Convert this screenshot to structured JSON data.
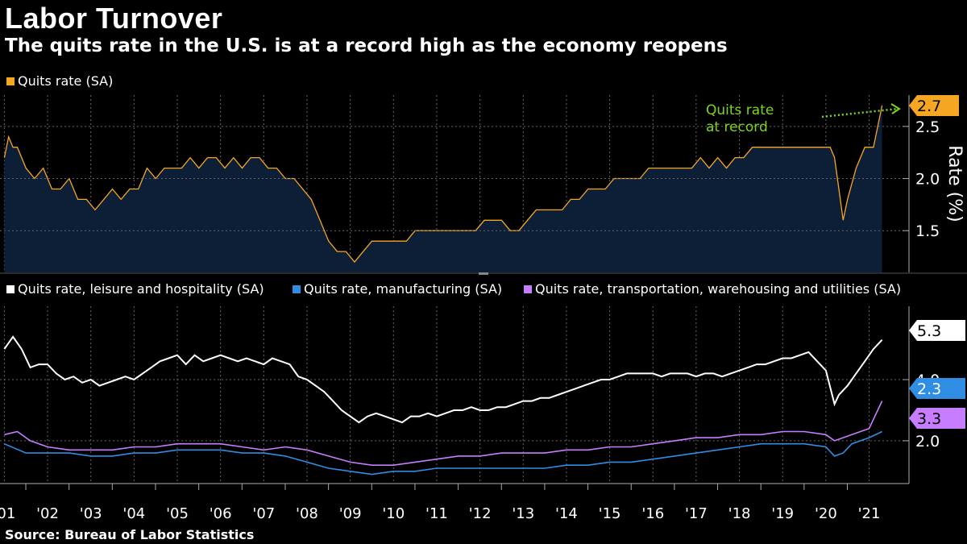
{
  "title": "Labor Turnover",
  "subtitle": "The quits rate in the U.S. is at a record high as the economy reopens",
  "source": "Source: Bureau of Labor Statistics",
  "colors": {
    "background": "#000000",
    "total": "#f5a623",
    "total_area": "#0c1f37",
    "leisure": "#ffffff",
    "manufacturing": "#2f8de4",
    "transportation": "#c77dff",
    "annotation": "#7ed321",
    "grid": "#666666"
  },
  "chart_data": [
    {
      "type": "area",
      "title": "Quits rate (SA)",
      "ylabel": "Rate (%)",
      "ylim": [
        1.1,
        2.8
      ],
      "yticks": [
        "1.5",
        "2.0",
        "2.5"
      ],
      "x_range": [
        2000.9,
        2021.4
      ],
      "annotation": "Quits rate at record",
      "series": [
        {
          "name": "Quits rate (SA)",
          "last_value_label": "2.7",
          "x": [
            2001.0,
            2001.1,
            2001.2,
            2001.3,
            2001.5,
            2001.7,
            2001.9,
            2002.1,
            2002.3,
            2002.5,
            2002.7,
            2002.9,
            2003.1,
            2003.3,
            2003.5,
            2003.7,
            2003.9,
            2004.1,
            2004.3,
            2004.5,
            2004.7,
            2004.9,
            2005.1,
            2005.3,
            2005.5,
            2005.7,
            2005.9,
            2006.1,
            2006.3,
            2006.5,
            2006.7,
            2006.9,
            2007.1,
            2007.3,
            2007.5,
            2007.7,
            2007.9,
            2008.1,
            2008.3,
            2008.5,
            2008.7,
            2008.9,
            2009.1,
            2009.3,
            2009.5,
            2009.7,
            2009.9,
            2010.1,
            2010.3,
            2010.5,
            2010.7,
            2010.9,
            2011.1,
            2011.3,
            2011.5,
            2011.7,
            2011.9,
            2012.1,
            2012.3,
            2012.5,
            2012.7,
            2012.9,
            2013.1,
            2013.3,
            2013.5,
            2013.7,
            2013.9,
            2014.1,
            2014.3,
            2014.5,
            2014.7,
            2014.9,
            2015.1,
            2015.3,
            2015.5,
            2015.7,
            2015.9,
            2016.1,
            2016.3,
            2016.5,
            2016.7,
            2016.9,
            2017.1,
            2017.3,
            2017.5,
            2017.7,
            2017.9,
            2018.1,
            2018.3,
            2018.5,
            2018.7,
            2018.9,
            2019.1,
            2019.3,
            2019.5,
            2019.7,
            2019.9,
            2020.1,
            2020.2,
            2020.3,
            2020.4,
            2020.5,
            2020.7,
            2020.9,
            2021.1,
            2021.3
          ],
          "values": [
            2.2,
            2.4,
            2.3,
            2.3,
            2.1,
            2.0,
            2.1,
            1.9,
            1.9,
            2.0,
            1.8,
            1.8,
            1.7,
            1.8,
            1.9,
            1.8,
            1.9,
            1.9,
            2.1,
            2.0,
            2.1,
            2.1,
            2.1,
            2.2,
            2.1,
            2.2,
            2.2,
            2.1,
            2.2,
            2.1,
            2.2,
            2.2,
            2.1,
            2.1,
            2.0,
            2.0,
            1.9,
            1.8,
            1.6,
            1.4,
            1.3,
            1.3,
            1.2,
            1.3,
            1.4,
            1.4,
            1.4,
            1.4,
            1.4,
            1.5,
            1.5,
            1.5,
            1.5,
            1.5,
            1.5,
            1.5,
            1.5,
            1.6,
            1.6,
            1.6,
            1.5,
            1.5,
            1.6,
            1.7,
            1.7,
            1.7,
            1.7,
            1.8,
            1.8,
            1.9,
            1.9,
            1.9,
            2.0,
            2.0,
            2.0,
            2.0,
            2.1,
            2.1,
            2.1,
            2.1,
            2.1,
            2.1,
            2.2,
            2.1,
            2.2,
            2.1,
            2.2,
            2.2,
            2.3,
            2.3,
            2.3,
            2.3,
            2.3,
            2.3,
            2.3,
            2.3,
            2.3,
            2.3,
            2.2,
            1.9,
            1.6,
            1.8,
            2.1,
            2.3,
            2.3,
            2.7
          ]
        }
      ]
    },
    {
      "type": "line",
      "ylim": [
        0.6,
        6.4
      ],
      "yticks": [
        "2.0",
        "4.0"
      ],
      "x_range": [
        2000.9,
        2021.4
      ],
      "xticks": [
        "'01",
        "'02",
        "'03",
        "'04",
        "'05",
        "'06",
        "'07",
        "'08",
        "'09",
        "'10",
        "'11",
        "'12",
        "'13",
        "'14",
        "'15",
        "'16",
        "'17",
        "'18",
        "'19",
        "'20",
        "'21"
      ],
      "series": [
        {
          "name": "Quits rate, leisure and hospitality (SA)",
          "last_value_label": "5.3",
          "x": [
            2001.0,
            2001.2,
            2001.4,
            2001.6,
            2001.8,
            2002.0,
            2002.2,
            2002.4,
            2002.6,
            2002.8,
            2003.0,
            2003.2,
            2003.4,
            2003.6,
            2003.8,
            2004.0,
            2004.2,
            2004.4,
            2004.6,
            2004.8,
            2005.0,
            2005.2,
            2005.4,
            2005.6,
            2005.8,
            2006.0,
            2006.2,
            2006.4,
            2006.6,
            2006.8,
            2007.0,
            2007.2,
            2007.4,
            2007.6,
            2007.8,
            2008.0,
            2008.2,
            2008.4,
            2008.6,
            2008.8,
            2009.0,
            2009.2,
            2009.4,
            2009.6,
            2009.8,
            2010.0,
            2010.2,
            2010.4,
            2010.6,
            2010.8,
            2011.0,
            2011.2,
            2011.4,
            2011.6,
            2011.8,
            2012.0,
            2012.2,
            2012.4,
            2012.6,
            2012.8,
            2013.0,
            2013.2,
            2013.4,
            2013.6,
            2013.8,
            2014.0,
            2014.2,
            2014.4,
            2014.6,
            2014.8,
            2015.0,
            2015.2,
            2015.4,
            2015.6,
            2015.8,
            2016.0,
            2016.2,
            2016.4,
            2016.6,
            2016.8,
            2017.0,
            2017.2,
            2017.4,
            2017.6,
            2017.8,
            2018.0,
            2018.2,
            2018.4,
            2018.6,
            2018.8,
            2019.0,
            2019.2,
            2019.4,
            2019.6,
            2019.8,
            2020.0,
            2020.2,
            2020.3,
            2020.5,
            2020.7,
            2020.9,
            2021.1,
            2021.3
          ],
          "values": [
            5.0,
            5.4,
            5.0,
            4.4,
            4.5,
            4.5,
            4.2,
            4.0,
            4.1,
            3.9,
            4.0,
            3.8,
            3.9,
            4.0,
            4.1,
            4.0,
            4.2,
            4.4,
            4.6,
            4.7,
            4.8,
            4.5,
            4.8,
            4.6,
            4.7,
            4.8,
            4.7,
            4.6,
            4.7,
            4.6,
            4.5,
            4.7,
            4.6,
            4.5,
            4.1,
            4.0,
            3.8,
            3.6,
            3.3,
            3.0,
            2.8,
            2.6,
            2.8,
            2.9,
            2.8,
            2.7,
            2.6,
            2.8,
            2.8,
            2.9,
            2.8,
            2.9,
            3.0,
            3.0,
            3.1,
            3.0,
            3.0,
            3.1,
            3.1,
            3.2,
            3.3,
            3.3,
            3.4,
            3.4,
            3.5,
            3.6,
            3.7,
            3.8,
            3.9,
            4.0,
            4.0,
            4.1,
            4.2,
            4.2,
            4.2,
            4.2,
            4.1,
            4.2,
            4.2,
            4.2,
            4.1,
            4.2,
            4.2,
            4.1,
            4.2,
            4.3,
            4.4,
            4.5,
            4.5,
            4.6,
            4.7,
            4.7,
            4.8,
            4.9,
            4.6,
            4.3,
            3.2,
            3.5,
            3.8,
            4.2,
            4.6,
            5.0,
            5.3
          ]
        },
        {
          "name": "Quits rate, manufacturing (SA)",
          "last_value_label": "2.3",
          "x": [
            2001.0,
            2001.5,
            2002.0,
            2002.5,
            2003.0,
            2003.5,
            2004.0,
            2004.5,
            2005.0,
            2005.5,
            2006.0,
            2006.5,
            2007.0,
            2007.5,
            2008.0,
            2008.5,
            2009.0,
            2009.5,
            2010.0,
            2010.5,
            2011.0,
            2011.5,
            2012.0,
            2012.5,
            2013.0,
            2013.5,
            2014.0,
            2014.5,
            2015.0,
            2015.5,
            2016.0,
            2016.5,
            2017.0,
            2017.5,
            2018.0,
            2018.5,
            2019.0,
            2019.5,
            2020.0,
            2020.2,
            2020.4,
            2020.6,
            2020.8,
            2021.0,
            2021.3
          ],
          "values": [
            1.9,
            1.6,
            1.6,
            1.6,
            1.5,
            1.5,
            1.6,
            1.6,
            1.7,
            1.7,
            1.7,
            1.6,
            1.6,
            1.5,
            1.3,
            1.1,
            1.0,
            0.9,
            1.0,
            1.0,
            1.1,
            1.1,
            1.1,
            1.1,
            1.1,
            1.1,
            1.2,
            1.2,
            1.3,
            1.3,
            1.4,
            1.5,
            1.6,
            1.7,
            1.8,
            1.9,
            1.9,
            1.9,
            1.8,
            1.5,
            1.6,
            1.9,
            2.0,
            2.1,
            2.3
          ]
        },
        {
          "name": "Quits rate, transportation, warehousing and utilities (SA)",
          "last_value_label": "3.3",
          "x": [
            2001.0,
            2001.3,
            2001.6,
            2002.0,
            2002.5,
            2003.0,
            2003.5,
            2004.0,
            2004.5,
            2005.0,
            2005.5,
            2006.0,
            2006.5,
            2007.0,
            2007.5,
            2008.0,
            2008.5,
            2009.0,
            2009.5,
            2010.0,
            2010.5,
            2011.0,
            2011.5,
            2012.0,
            2012.5,
            2013.0,
            2013.5,
            2014.0,
            2014.5,
            2015.0,
            2015.5,
            2016.0,
            2016.5,
            2017.0,
            2017.5,
            2018.0,
            2018.5,
            2019.0,
            2019.5,
            2020.0,
            2020.2,
            2020.4,
            2020.6,
            2020.8,
            2021.0,
            2021.3
          ],
          "values": [
            2.2,
            2.3,
            2.0,
            1.8,
            1.7,
            1.7,
            1.7,
            1.8,
            1.8,
            1.9,
            1.9,
            1.9,
            1.8,
            1.7,
            1.8,
            1.7,
            1.5,
            1.3,
            1.2,
            1.2,
            1.3,
            1.4,
            1.5,
            1.5,
            1.6,
            1.6,
            1.6,
            1.7,
            1.7,
            1.8,
            1.8,
            1.9,
            2.0,
            2.1,
            2.1,
            2.2,
            2.2,
            2.3,
            2.3,
            2.2,
            2.0,
            2.1,
            2.2,
            2.3,
            2.4,
            3.3
          ]
        }
      ]
    }
  ]
}
